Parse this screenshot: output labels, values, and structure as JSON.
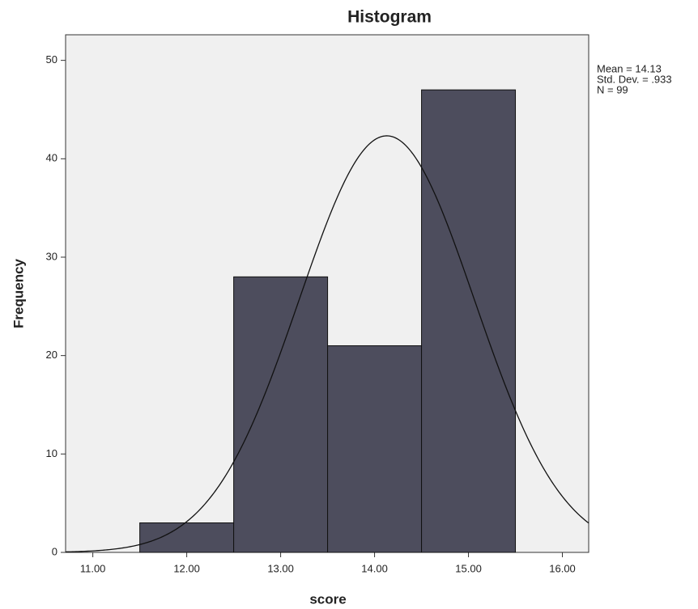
{
  "chart_data": {
    "type": "histogram",
    "title": "Histogram",
    "x_label": "score",
    "y_label": "Frequency",
    "bins": [
      11.5,
      12.5,
      13.5,
      14.5,
      15.5
    ],
    "values": [
      3,
      28,
      21,
      47
    ],
    "color": "#474758",
    "xlim": [
      10.71,
      16.28
    ],
    "xticks": [
      {
        "value": 11,
        "label": "11.00"
      },
      {
        "value": 12,
        "label": "12.00"
      },
      {
        "value": 13,
        "label": "13.00"
      },
      {
        "value": 14,
        "label": "14.00"
      },
      {
        "value": 15,
        "label": "15.00"
      },
      {
        "value": 16,
        "label": "16.00"
      }
    ],
    "ylim": [
      0,
      52.6
    ],
    "yticks": [
      0,
      10,
      20,
      30,
      40,
      50
    ],
    "normal_curve": {
      "mean": 14.13,
      "sd": 0.933,
      "n": 99
    },
    "stats": [
      "Mean = 14.13",
      "Std. Dev. = .933",
      "N = 99"
    ]
  }
}
